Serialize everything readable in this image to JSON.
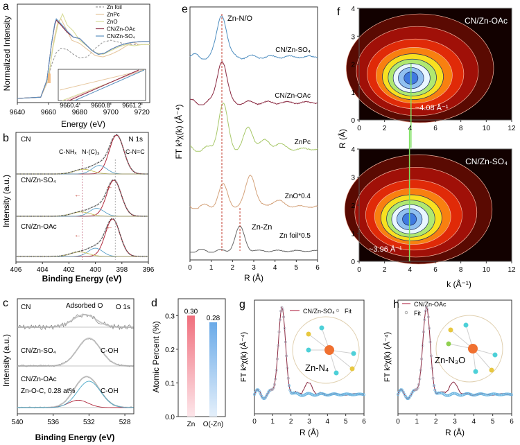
{
  "chart_data": [
    {
      "id": "a",
      "panel_label": "a",
      "type": "line",
      "xlabel": "Energy (eV)",
      "ylabel": "Normalized Intensity",
      "xlim": [
        9640,
        9725
      ],
      "xticks": [
        9640,
        9660,
        9680,
        9700,
        9720
      ],
      "series": [
        {
          "name": "Zn foil",
          "color": "#9a9a9a",
          "dash": true,
          "x": [
            9640,
            9655,
            9659,
            9662,
            9665,
            9668,
            9672,
            9676,
            9680,
            9685,
            9690,
            9695,
            9700,
            9705,
            9710,
            9715,
            9720,
            9725
          ],
          "y": [
            0.0,
            0.02,
            0.25,
            0.55,
            0.75,
            0.82,
            0.8,
            0.72,
            0.66,
            0.68,
            0.82,
            0.92,
            0.95,
            0.92,
            0.88,
            0.88,
            0.88,
            0.88
          ]
        },
        {
          "name": "ZnPc",
          "color": "#e7c8a0",
          "x": [
            9640,
            9655,
            9660,
            9663,
            9666,
            9668,
            9671,
            9675,
            9680,
            9685,
            9690,
            9695,
            9700,
            9705,
            9710,
            9714,
            9718,
            9725
          ],
          "y": [
            0.0,
            0.02,
            0.3,
            0.9,
            1.25,
            1.3,
            1.15,
            0.95,
            0.9,
            0.8,
            0.7,
            0.68,
            0.72,
            0.78,
            0.86,
            0.92,
            0.88,
            0.88
          ]
        },
        {
          "name": "ZnO",
          "color": "#d8dc9a",
          "x": [
            9640,
            9655,
            9660,
            9663,
            9666,
            9669,
            9672,
            9676,
            9680,
            9685,
            9690,
            9695,
            9700,
            9705,
            9710,
            9715,
            9720,
            9725
          ],
          "y": [
            0.0,
            0.02,
            0.35,
            0.85,
            1.2,
            1.38,
            1.2,
            1.1,
            0.95,
            0.85,
            0.75,
            0.72,
            0.78,
            0.84,
            0.88,
            0.86,
            0.88,
            0.88
          ]
        },
        {
          "name": "CN/Zn-OAc",
          "color": "#8a2840",
          "x": [
            9640,
            9655,
            9659,
            9662,
            9664,
            9665,
            9668,
            9672,
            9676,
            9680,
            9684,
            9688,
            9692,
            9696,
            9700,
            9705,
            9710,
            9715,
            9720,
            9725
          ],
          "y": [
            0.0,
            0.02,
            0.3,
            0.9,
            1.2,
            1.28,
            1.2,
            1.08,
            1.0,
            0.98,
            0.88,
            0.78,
            0.72,
            0.74,
            0.8,
            0.86,
            0.9,
            0.92,
            0.93,
            0.93
          ]
        },
        {
          "name": "CN/Zn-SO4",
          "color": "#5a8fbf",
          "x": [
            9640,
            9655,
            9659,
            9662,
            9664,
            9665,
            9668,
            9672,
            9676,
            9680,
            9684,
            9688,
            9692,
            9696,
            9700,
            9705,
            9710,
            9715,
            9720,
            9725
          ],
          "y": [
            0.0,
            0.02,
            0.3,
            0.9,
            1.22,
            1.3,
            1.22,
            1.1,
            1.0,
            0.98,
            0.88,
            0.78,
            0.72,
            0.74,
            0.8,
            0.86,
            0.9,
            0.92,
            0.93,
            0.93
          ]
        }
      ],
      "legend": [
        "Zn foil",
        "ZnPc",
        "ZnO",
        "CN/Zn-OAc",
        "CN/Zn-SO₄"
      ],
      "legend_position": "top-right",
      "inset": {
        "xticks": [
          "9660.4",
          "9660.8",
          "9661.2"
        ]
      }
    },
    {
      "id": "b",
      "panel_label": "b",
      "type": "line",
      "title_annotation": "N 1s",
      "xlabel": "Binding Energy (eV)",
      "ylabel": "Intensity (a.u.)",
      "xlim": [
        406,
        396
      ],
      "xticks": [
        406,
        404,
        402,
        400,
        398,
        396
      ],
      "stacks": [
        {
          "name": "CN",
          "peak_center": 398.4
        },
        {
          "name": "CN/Zn-SO₄",
          "peak_center": 398.6
        },
        {
          "name": "CN/Zn-OAc",
          "peak_center": 398.7
        }
      ],
      "annotations": [
        "C-NHₓ",
        "N-(C)₃",
        "C-N=C"
      ],
      "reference_lines_eV": [
        401.0,
        398.5
      ]
    },
    {
      "id": "c",
      "panel_label": "c",
      "type": "line",
      "title_annotation": "O 1s",
      "xlabel": "Binding Energy (eV)",
      "ylabel": "Intensity (a.u.)",
      "xlim": [
        540,
        527
      ],
      "xticks": [
        540,
        536,
        532,
        528
      ],
      "stacks": [
        {
          "name": "CN",
          "annotation": "Adsorbed O",
          "peak_center": 532.5
        },
        {
          "name": "CN/Zn-SO₄",
          "annotation": "C-OH",
          "peak_center": 532.0
        },
        {
          "name": "CN/Zn-OAc",
          "annotation": "C-OH",
          "peak_center": 532.0,
          "extra_annotation": "Zn-O-C, 0.28 at%",
          "extra_peak_center": 533.2
        }
      ]
    },
    {
      "id": "d",
      "panel_label": "d",
      "type": "bar",
      "ylabel": "Atomic Percent (%)",
      "categories": [
        "Zn",
        "O(-Zn)"
      ],
      "values": [
        0.3,
        0.28
      ],
      "value_labels": [
        "0.30",
        "0.28"
      ],
      "colors": [
        "#f06f7d",
        "#6aaae8"
      ],
      "ylim": [
        0,
        0.35
      ],
      "yticks": [
        "0.0",
        "0.1",
        "0.2",
        "0.3"
      ]
    },
    {
      "id": "e",
      "panel_label": "e",
      "type": "line",
      "xlabel": "R (Å)",
      "ylabel": "FT k³χ(k) (Å⁻⁴)",
      "xlim": [
        0,
        6
      ],
      "xticks": [
        0,
        1,
        2,
        3,
        4,
        5,
        6
      ],
      "series": [
        {
          "name": "CN/Zn-SO₄",
          "color": "#4f8ec0",
          "peaks": [
            [
              1.5,
              1.0
            ]
          ]
        },
        {
          "name": "CN/Zn-OAc",
          "color": "#8a2840",
          "peaks": [
            [
              1.5,
              1.0
            ]
          ]
        },
        {
          "name": "ZnPc",
          "color": "#a8c86a",
          "peaks": [
            [
              1.55,
              1.0
            ],
            [
              2.75,
              0.45
            ]
          ]
        },
        {
          "name": "ZnO*0.4",
          "color": "#d4a27a",
          "peaks": [
            [
              1.55,
              0.55
            ],
            [
              2.85,
              0.85
            ]
          ]
        },
        {
          "name": "Zn foil*0.5",
          "color": "#666666",
          "peaks": [
            [
              2.35,
              0.9
            ]
          ]
        }
      ],
      "annotations": [
        "Zn-N/O",
        "Zn-Zn"
      ],
      "reference_lines_R": [
        1.5,
        2.35
      ]
    },
    {
      "id": "f",
      "panel_label": "f",
      "type": "heatmap",
      "xlabel": "k (Å⁻¹)",
      "ylabel": "R (Å)",
      "xlim": [
        0,
        12
      ],
      "ylim": [
        0,
        4
      ],
      "xticks": [
        0,
        2,
        4,
        6,
        8,
        10,
        12
      ],
      "yticks": [
        0,
        1,
        2,
        3,
        4
      ],
      "maps": [
        {
          "name": "CN/Zn-OAc",
          "max_k": 4.08,
          "max_R": 1.5,
          "annotation": "~4.08 Å⁻¹"
        },
        {
          "name": "CN/Zn-SO₄",
          "max_k": 3.96,
          "max_R": 1.5,
          "annotation": "~3.96 Å⁻¹"
        }
      ]
    },
    {
      "id": "g",
      "panel_label": "g",
      "type": "line",
      "xlabel": "R (Å)",
      "ylabel": "FT k³χ(k) (Å⁻⁴)",
      "xlim": [
        0,
        6
      ],
      "xticks": [
        0,
        1,
        2,
        3,
        4,
        5,
        6
      ],
      "legend": [
        "CN/Zn-SO₄",
        "Fit"
      ],
      "inset_label": "Zn-N₄",
      "peaks": [
        [
          1.5,
          1.0
        ],
        [
          2.95,
          0.12
        ]
      ]
    },
    {
      "id": "h",
      "panel_label": "h",
      "type": "line",
      "xlabel": "R (Å)",
      "ylabel": "FT k³χ(k) (Å⁻⁴)",
      "xlim": [
        0,
        6
      ],
      "xticks": [
        0,
        1,
        2,
        3,
        4,
        5,
        6
      ],
      "legend": [
        "CN/Zn-OAc",
        "Fit"
      ],
      "inset_label": "Zn-N₃O",
      "peaks": [
        [
          1.5,
          1.0
        ],
        [
          2.9,
          0.13
        ]
      ]
    }
  ]
}
